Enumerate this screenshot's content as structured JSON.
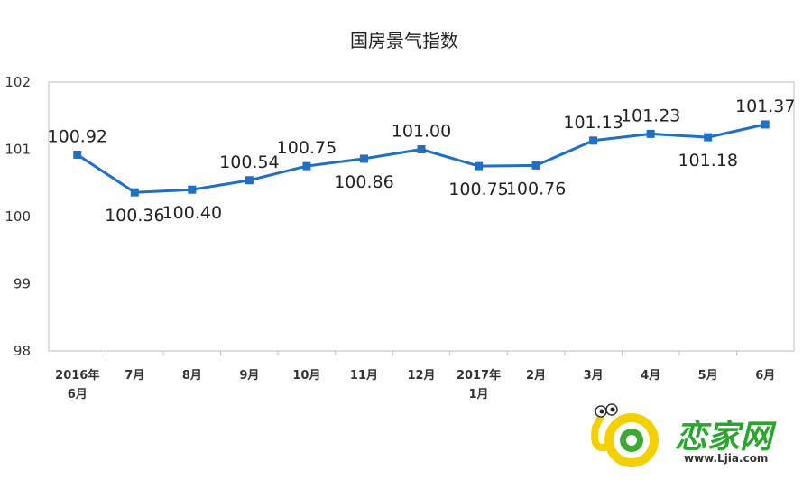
{
  "chart_data": {
    "type": "line",
    "title": "国房景气指数",
    "categories": [
      [
        "2016年",
        "6月"
      ],
      [
        "7月"
      ],
      [
        "8月"
      ],
      [
        "9月"
      ],
      [
        "10月"
      ],
      [
        "11月"
      ],
      [
        "12月"
      ],
      [
        "2017年",
        "1月"
      ],
      [
        "2月"
      ],
      [
        "3月"
      ],
      [
        "4月"
      ],
      [
        "5月"
      ],
      [
        "6月"
      ]
    ],
    "values": [
      100.92,
      100.36,
      100.4,
      100.54,
      100.75,
      100.86,
      101.0,
      100.75,
      100.76,
      101.13,
      101.23,
      101.18,
      101.37
    ],
    "data_labels": [
      "100.92",
      "100.36",
      "100.40",
      "100.54",
      "100.75",
      "100.86",
      "101.00",
      "100.75",
      "100.76",
      "101.13",
      "101.23",
      "101.18",
      "101.37"
    ],
    "label_positions": [
      "above",
      "below",
      "below",
      "above",
      "above",
      "below",
      "above",
      "below",
      "below",
      "above",
      "above",
      "below",
      "above"
    ],
    "ylim": [
      98,
      102
    ],
    "yticks": [
      "98",
      "99",
      "100",
      "101",
      "102"
    ],
    "xlabel": "",
    "ylabel": "",
    "grid": false,
    "legend": "none",
    "line_color": "#1f6fc5",
    "marker": "square"
  },
  "watermark": {
    "brand": "恋家网",
    "url": "www.Ljia.com",
    "icon": "snail-logo-icon"
  }
}
